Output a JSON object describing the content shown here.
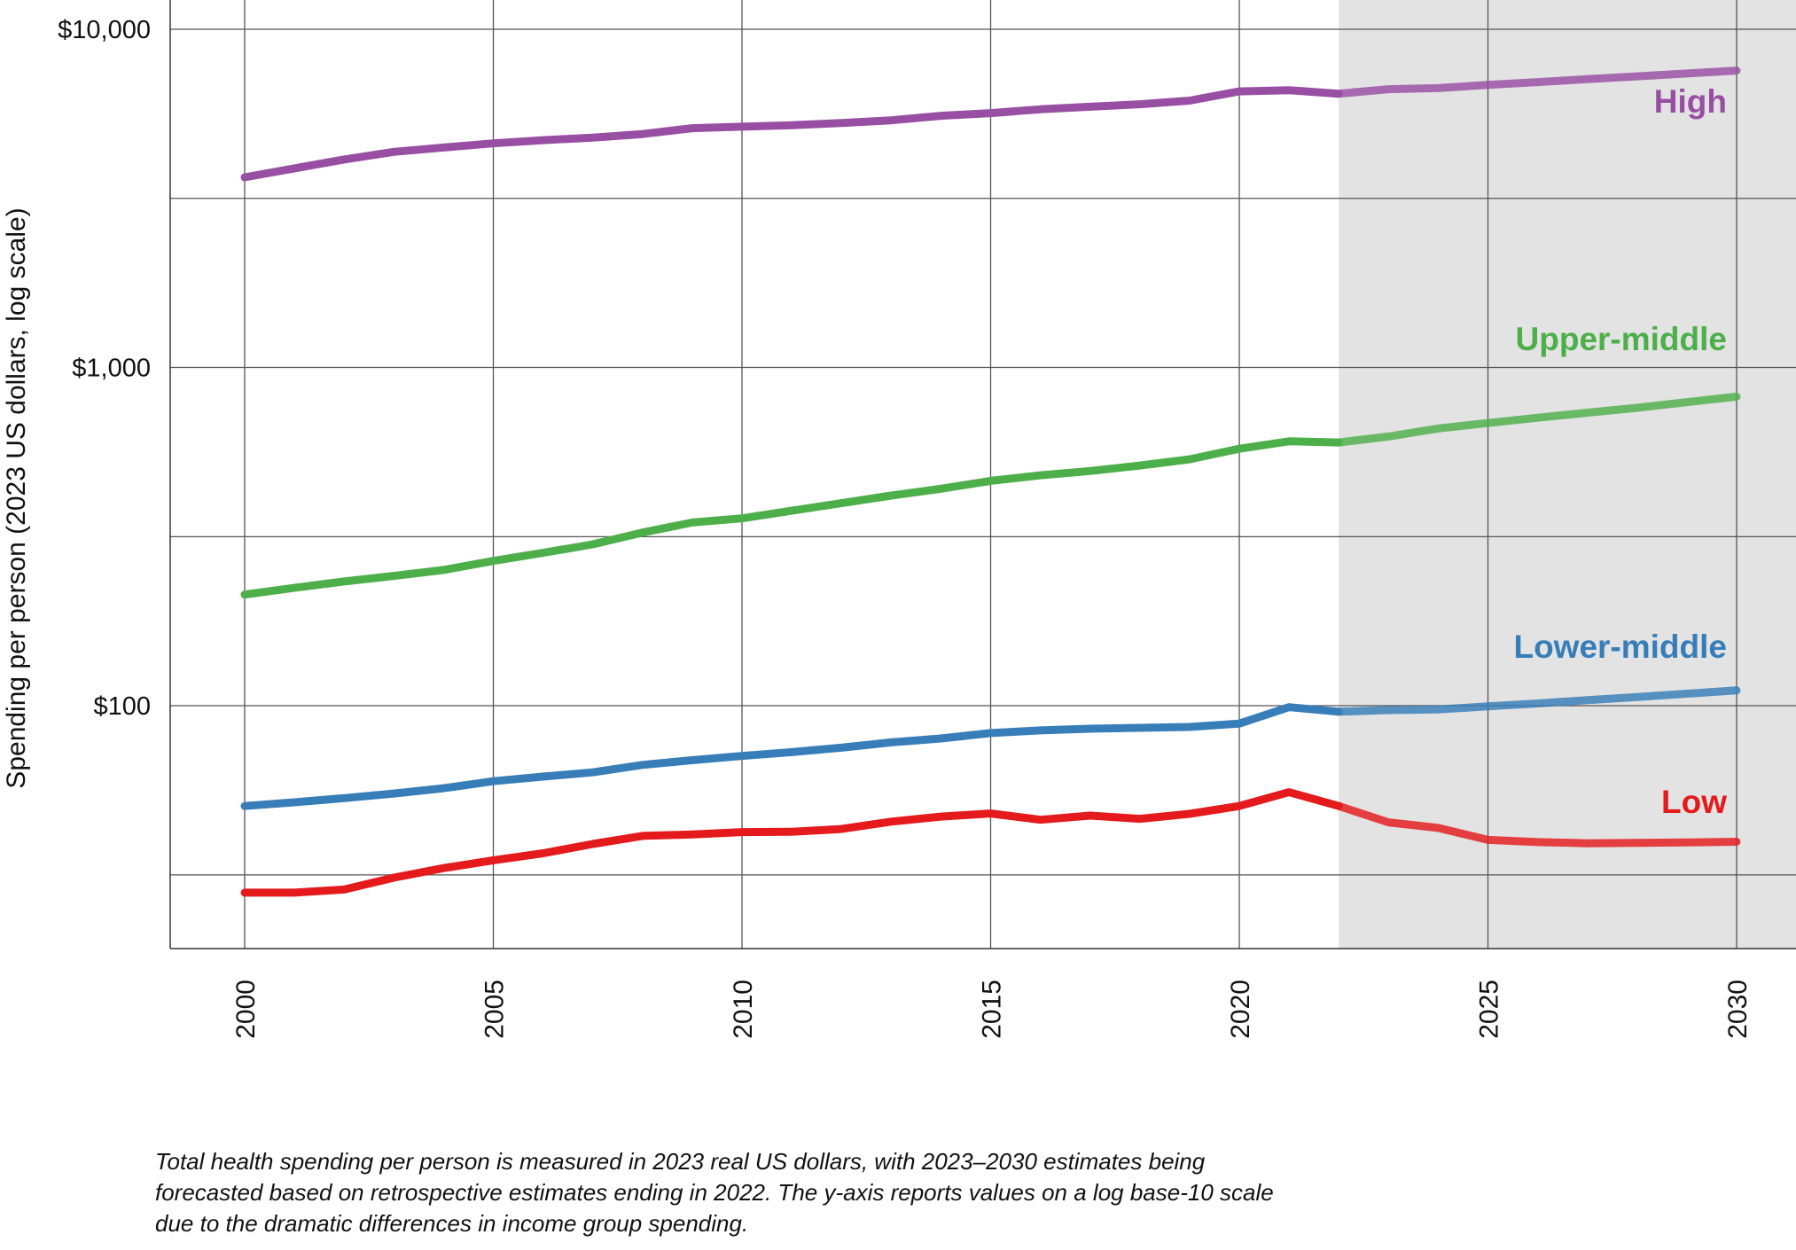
{
  "chart_data": {
    "type": "line",
    "ylabel": "Spending per person (2023 US dollars, log scale)",
    "yscale": "log10",
    "ylim": [
      16,
      10000
    ],
    "xlim": [
      1998.5,
      2031.2
    ],
    "yticks": [
      {
        "value": 10000,
        "label": "$10,000"
      },
      {
        "value": 1000,
        "label": "$1,000"
      },
      {
        "value": 100,
        "label": "$100"
      }
    ],
    "ygrid_values": [
      10000,
      3162,
      1000,
      316,
      100,
      31.6
    ],
    "xticks": [
      {
        "value": 2000,
        "label": "2000"
      },
      {
        "value": 2005,
        "label": "2005"
      },
      {
        "value": 2010,
        "label": "2010"
      },
      {
        "value": 2015,
        "label": "2015"
      },
      {
        "value": 2020,
        "label": "2020"
      },
      {
        "value": 2025,
        "label": "2025"
      },
      {
        "value": 2030,
        "label": "2030"
      }
    ],
    "grid": true,
    "forecast_start": 2022,
    "forecast_shade_color": "#e3e3e3",
    "years": [
      2000,
      2001,
      2002,
      2003,
      2004,
      2005,
      2006,
      2007,
      2008,
      2009,
      2010,
      2011,
      2012,
      2013,
      2014,
      2015,
      2016,
      2017,
      2018,
      2019,
      2020,
      2021,
      2022,
      2023,
      2024,
      2025,
      2026,
      2027,
      2028,
      2029,
      2030
    ],
    "series": [
      {
        "name": "High",
        "color": "#984ea3",
        "values": [
          3650,
          3880,
          4120,
          4340,
          4470,
          4600,
          4700,
          4780,
          4900,
          5100,
          5150,
          5200,
          5280,
          5380,
          5550,
          5650,
          5800,
          5900,
          6000,
          6150,
          6550,
          6600,
          6450,
          6650,
          6700,
          6850,
          6980,
          7120,
          7260,
          7400,
          7550
        ]
      },
      {
        "name": "Upper-middle",
        "color": "#4daf4a",
        "values": [
          213,
          223,
          233,
          242,
          252,
          268,
          283,
          300,
          325,
          348,
          358,
          377,
          397,
          418,
          438,
          462,
          480,
          494,
          513,
          535,
          575,
          605,
          600,
          625,
          660,
          685,
          710,
          735,
          760,
          790,
          820
        ]
      },
      {
        "name": "Lower-middle",
        "color": "#377eb8",
        "values": [
          50.5,
          51.8,
          53.3,
          55.0,
          57.0,
          59.8,
          61.7,
          63.5,
          66.8,
          69.0,
          71.0,
          72.9,
          75.1,
          77.9,
          80.0,
          83.0,
          84.5,
          85.5,
          86.0,
          86.5,
          88.5,
          99.0,
          96.0,
          97.0,
          97.5,
          99.5,
          101.5,
          103.8,
          106.0,
          108.5,
          111.0
        ]
      },
      {
        "name": "Low",
        "color": "#e41a1c",
        "values": [
          28.0,
          28.0,
          28.6,
          31.0,
          33.1,
          34.9,
          36.6,
          39.0,
          41.2,
          41.6,
          42.3,
          42.4,
          43.2,
          45.4,
          47.0,
          48.0,
          46.0,
          47.3,
          46.3,
          47.9,
          50.5,
          55.5,
          50.5,
          45.2,
          43.5,
          40.1,
          39.5,
          39.2,
          39.3,
          39.4,
          39.6
        ]
      }
    ],
    "caption": "Total health spending per person is measured in 2023 real US dollars, with 2023–2030 estimates being forecasted based on retrospective estimates ending in 2022. The y-axis reports values on a log base-10 scale due to the dramatic differences in income group spending."
  }
}
